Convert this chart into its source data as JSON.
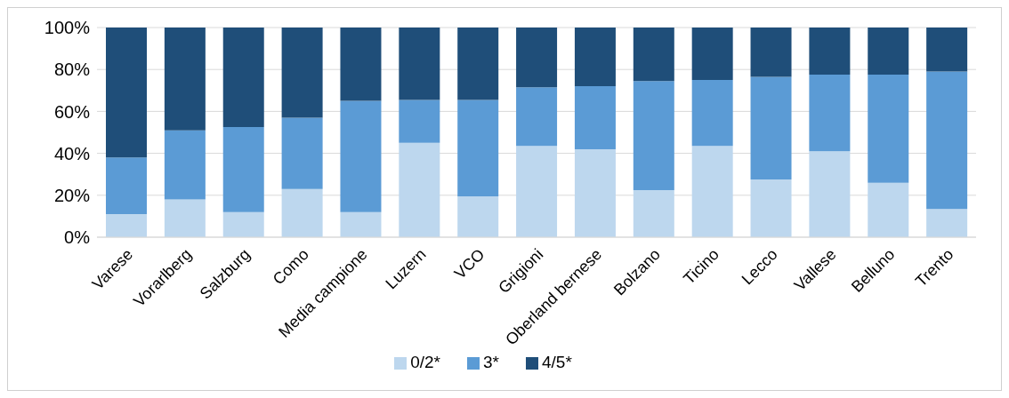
{
  "chart_data": {
    "type": "bar",
    "stacked": true,
    "categories": [
      "Varese",
      "Vorarlberg",
      "Salzburg",
      "Como",
      "Media campione",
      "Luzern",
      "VCO",
      "Grigioni",
      "Oberland bernese",
      "Bolzano",
      "Ticino",
      "Lecco",
      "Vallese",
      "Belluno",
      "Trento"
    ],
    "series": [
      {
        "name": "0/2*",
        "color": "#bdd7ee",
        "values": [
          11,
          18,
          12,
          23,
          12,
          45,
          19.5,
          43.5,
          42,
          22.5,
          43.5,
          27.5,
          41,
          26,
          13.5
        ]
      },
      {
        "name": "3*",
        "color": "#5b9bd5",
        "values": [
          27,
          33,
          40.5,
          34,
          53,
          20.5,
          46,
          28,
          30,
          52,
          31.5,
          49,
          36.5,
          51.5,
          65.5
        ]
      },
      {
        "name": "4/5*",
        "color": "#1f4e79",
        "values": [
          62,
          49,
          47.5,
          43,
          35,
          34.5,
          34.5,
          28.5,
          28,
          25.5,
          25,
          23.5,
          22.5,
          22.5,
          21
        ]
      }
    ],
    "ylim": [
      0,
      100
    ],
    "yticks": [
      {
        "value": 0,
        "label": "0%"
      },
      {
        "value": 20,
        "label": "20%"
      },
      {
        "value": 40,
        "label": "40%"
      },
      {
        "value": 60,
        "label": "60%"
      },
      {
        "value": 80,
        "label": "80%"
      },
      {
        "value": 100,
        "label": "100%"
      }
    ],
    "grid": "y",
    "legend": "bottom"
  }
}
